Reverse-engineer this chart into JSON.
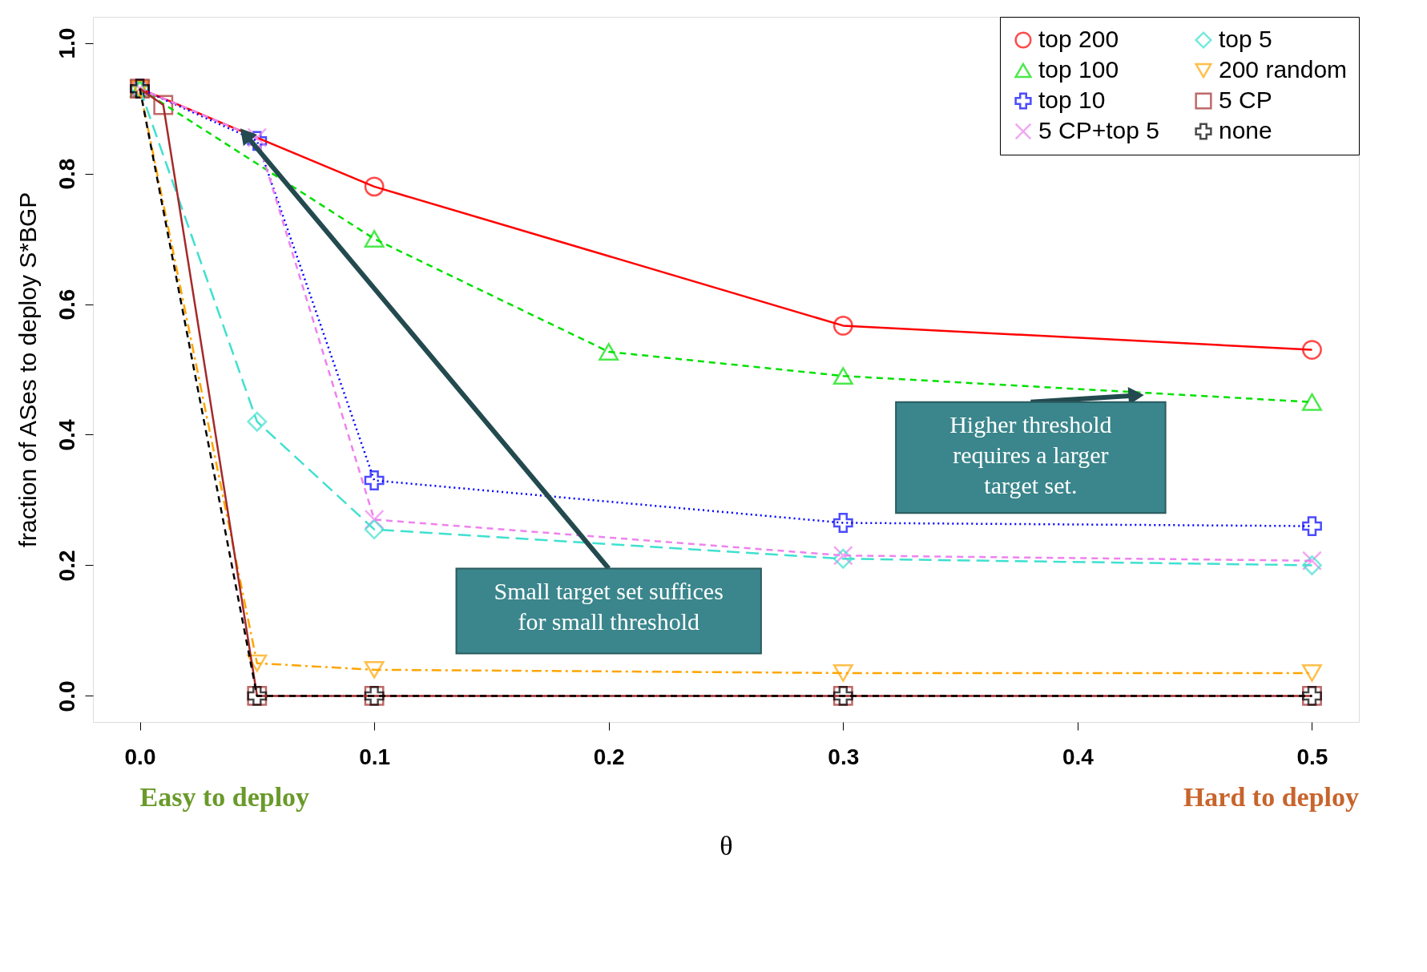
{
  "chart_data": {
    "type": "line",
    "xlabel": "θ",
    "ylabel": "fraction of ASes to deploy S*BGP",
    "xlim": [
      -0.02,
      0.52
    ],
    "ylim": [
      -0.04,
      1.04
    ],
    "xticks": [
      {
        "value": 0,
        "label": "0.0"
      },
      0.1,
      0.2,
      0.3,
      0.4,
      0.5
    ],
    "yticks": [
      {
        "value": 0,
        "label": "0.0"
      },
      0.2,
      0.4,
      0.6,
      0.8,
      {
        "value": 1,
        "label": "1.0"
      }
    ],
    "grid": false,
    "legend": "top right",
    "series": [
      {
        "name": "top 200",
        "color": "#ff0000",
        "marker": "circle",
        "line_style": "solid",
        "x": [
          0,
          0.1,
          0.3,
          0.5
        ],
        "values": [
          0.93,
          0.78,
          0.567,
          0.53
        ]
      },
      {
        "name": "top 100",
        "color": "#00e000",
        "marker": "triangle",
        "line_style": "dashed",
        "x": [
          0,
          0.1,
          0.2,
          0.3,
          0.5
        ],
        "values": [
          0.93,
          0.7,
          0.527,
          0.49,
          0.45
        ]
      },
      {
        "name": "top 10",
        "color": "#0000ff",
        "marker": "cross",
        "line_style": "dotted",
        "x": [
          0,
          0.05,
          0.1,
          0.3,
          0.5
        ],
        "values": [
          0.93,
          0.85,
          0.33,
          0.265,
          0.26
        ]
      },
      {
        "name": "5 CP+top 5",
        "color": "#ee82ee",
        "marker": "x",
        "line_style": "dashed",
        "x": [
          0,
          0.05,
          0.1,
          0.3,
          0.5
        ],
        "values": [
          0.93,
          0.855,
          0.27,
          0.215,
          0.207
        ]
      },
      {
        "name": "top 5",
        "color": "#40e0d0",
        "marker": "diamond",
        "line_style": "longdash",
        "x": [
          0,
          0.05,
          0.1,
          0.3,
          0.5
        ],
        "values": [
          0.93,
          0.42,
          0.255,
          0.21,
          0.2
        ]
      },
      {
        "name": "200 random",
        "color": "#ffa500",
        "marker": "triangle-down",
        "line_style": "dashdot",
        "x": [
          0,
          0.05,
          0.1,
          0.3,
          0.5
        ],
        "values": [
          0.93,
          0.05,
          0.04,
          0.035,
          0.035
        ]
      },
      {
        "name": "5 CP",
        "color": "#a52a2a",
        "marker": "square",
        "line_style": "solid",
        "x": [
          0,
          0.01,
          0.05,
          0.1,
          0.3,
          0.5
        ],
        "values": [
          0.93,
          0.905,
          0,
          0,
          0,
          0
        ]
      },
      {
        "name": "none",
        "color": "#000000",
        "marker": "cross",
        "line_style": "dashed",
        "x": [
          0,
          0.05,
          0.1,
          0.3,
          0.5
        ],
        "values": [
          0.93,
          0,
          0,
          0,
          0
        ]
      }
    ],
    "annotations": [
      {
        "text": "Small target set suffices\nfor small threshold",
        "x": 0.045,
        "y": 0.86
      },
      {
        "text": "Higher threshold\nrequires a larger\ntarget set.",
        "x": 0.425,
        "y": 0.46
      },
      "Easy to deploy",
      "Hard to deploy"
    ]
  }
}
